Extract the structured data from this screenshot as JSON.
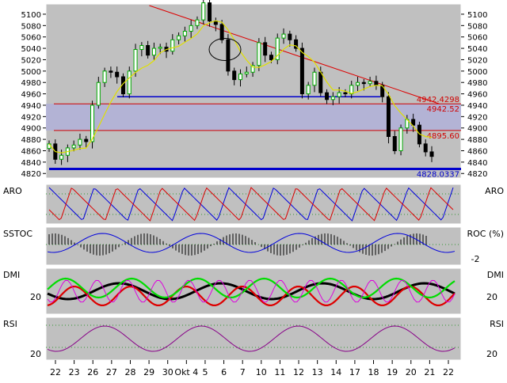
{
  "chart_data": [
    {
      "panel": "price",
      "type": "candlestick",
      "ylim": [
        4812,
        5118
      ],
      "yticks": [
        4820,
        4840,
        4860,
        4880,
        4900,
        4920,
        4940,
        4960,
        4980,
        5000,
        5020,
        5040,
        5060,
        5080,
        5100
      ],
      "x_tick_labels": [
        "22",
        "23",
        "26",
        "27",
        "28",
        "29",
        "30",
        "Okt 4",
        "5",
        "6",
        "7",
        "10",
        "11",
        "12",
        "13",
        "14",
        "17",
        "18",
        "19",
        "20",
        "21",
        "22"
      ],
      "ohlc_close_series": [
        4872,
        4845,
        4852,
        4865,
        4870,
        4880,
        4876,
        4940,
        4980,
        5000,
        4998,
        4990,
        4960,
        5000,
        5038,
        5045,
        5028,
        5040,
        5042,
        5035,
        5055,
        5062,
        5070,
        5080,
        5090,
        5120,
        5088,
        5082,
        5055,
        5000,
        4985,
        4995,
        4998,
        5010,
        5050,
        5028,
        5020,
        5058,
        5065,
        5055,
        5040,
        4960,
        4975,
        4998,
        4962,
        4950,
        4955,
        4962,
        4960,
        4975,
        4980,
        4978,
        4982,
        4975,
        4955,
        4885,
        4860,
        4900,
        4915,
        4905,
        4872,
        4858,
        4850
      ],
      "moving_average_color": "#e0e000",
      "candle_up_color": "#00aa00",
      "candle_down_color": "#000000",
      "red_resistance_line": {
        "from": [
          4,
          5118
        ],
        "to": [
          19.5,
          4942.4298
        ]
      },
      "horizontal_levels": [
        {
          "value": 4942.4298,
          "label": "4942.4298",
          "color": "#d00000"
        },
        {
          "value": 4942.52,
          "label": "4942.52",
          "color": "#d00000"
        },
        {
          "value": 4895.6,
          "label": "4895.60",
          "color": "#d00000"
        },
        {
          "value": 4828.0337,
          "label": "4828.0337",
          "color": "#0000cc"
        }
      ],
      "shaded_band": [
        4895.6,
        4942.52
      ],
      "blue_support_level": 4955
    },
    {
      "panel": "ARO",
      "left_label": "ARO",
      "right_label": "ARO",
      "series": [
        {
          "color": "#0000dd"
        },
        {
          "color": "#dd0000"
        }
      ]
    },
    {
      "panel": "SSTOC",
      "left_label": "SSTOC",
      "right_label": "ROC (%)",
      "right_tick": "-2",
      "series": [
        {
          "type": "histogram",
          "color": "#000000"
        },
        {
          "type": "line",
          "color": "#0000dd"
        }
      ]
    },
    {
      "panel": "DMI",
      "left_label": "DMI",
      "right_label": "DMI",
      "left_tick": "20",
      "right_tick": "20",
      "series": [
        {
          "color": "#000000"
        },
        {
          "color": "#dd0000"
        },
        {
          "color": "#00dd00"
        },
        {
          "color": "#dd00dd"
        }
      ]
    },
    {
      "panel": "RSI",
      "left_label": "RSI",
      "right_label": "RSI",
      "left_tick": "20",
      "right_tick": "20",
      "series": [
        {
          "color": "#880088"
        }
      ]
    }
  ]
}
